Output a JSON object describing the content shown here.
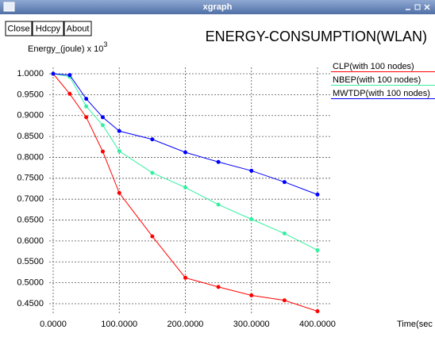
{
  "window_title": "xgraph",
  "buttons": [
    "Close",
    "Hdcpy",
    "About"
  ],
  "chart_data": {
    "type": "line",
    "title": "ENERGY-CONSUMPTION(WLAN)",
    "y_label": "Energy_(joule) x 10",
    "y_label_exponent": "3",
    "x_label": "Time(sec",
    "x": [
      0,
      25,
      50,
      75,
      100,
      150,
      200,
      250,
      300,
      350,
      400
    ],
    "series": [
      {
        "name": "CLP(with 100 nodes)",
        "color": "#ff0000",
        "values": [
          1.0,
          0.952,
          0.896,
          0.814,
          0.715,
          0.611,
          0.512,
          0.49,
          0.47,
          0.458,
          0.432
        ]
      },
      {
        "name": "NBEP(with 100 nodes)",
        "color": "#33f0a0",
        "values": [
          1.0,
          0.993,
          0.922,
          0.877,
          0.815,
          0.763,
          0.728,
          0.687,
          0.652,
          0.618,
          0.578
        ]
      },
      {
        "name": "MWTDP(with 100 nodes)",
        "color": "#0000ff",
        "values": [
          1.0,
          0.997,
          0.94,
          0.896,
          0.863,
          0.843,
          0.812,
          0.789,
          0.768,
          0.741,
          0.711
        ]
      }
    ],
    "xlim": [
      0,
      400
    ],
    "xticks": [
      {
        "value": 0,
        "label": "0.0000"
      },
      {
        "value": 100,
        "label": "100.0000"
      },
      {
        "value": 200,
        "label": "200.0000"
      },
      {
        "value": 300,
        "label": "300.0000"
      },
      {
        "value": 400,
        "label": "400.0000"
      }
    ],
    "ylim": [
      0.45,
      1.0
    ],
    "yticks": [
      {
        "value": 1.0,
        "label": "1.0000"
      },
      {
        "value": 0.95,
        "label": "0.9500"
      },
      {
        "value": 0.9,
        "label": "0.9000"
      },
      {
        "value": 0.85,
        "label": "0.8500"
      },
      {
        "value": 0.8,
        "label": "0.8000"
      },
      {
        "value": 0.75,
        "label": "0.7500"
      },
      {
        "value": 0.7,
        "label": "0.7000"
      },
      {
        "value": 0.65,
        "label": "0.6500"
      },
      {
        "value": 0.6,
        "label": "0.6000"
      },
      {
        "value": 0.55,
        "label": "0.5500"
      },
      {
        "value": 0.5,
        "label": "0.5000"
      },
      {
        "value": 0.45,
        "label": "0.4500"
      }
    ],
    "grid": true,
    "legend": "right"
  }
}
